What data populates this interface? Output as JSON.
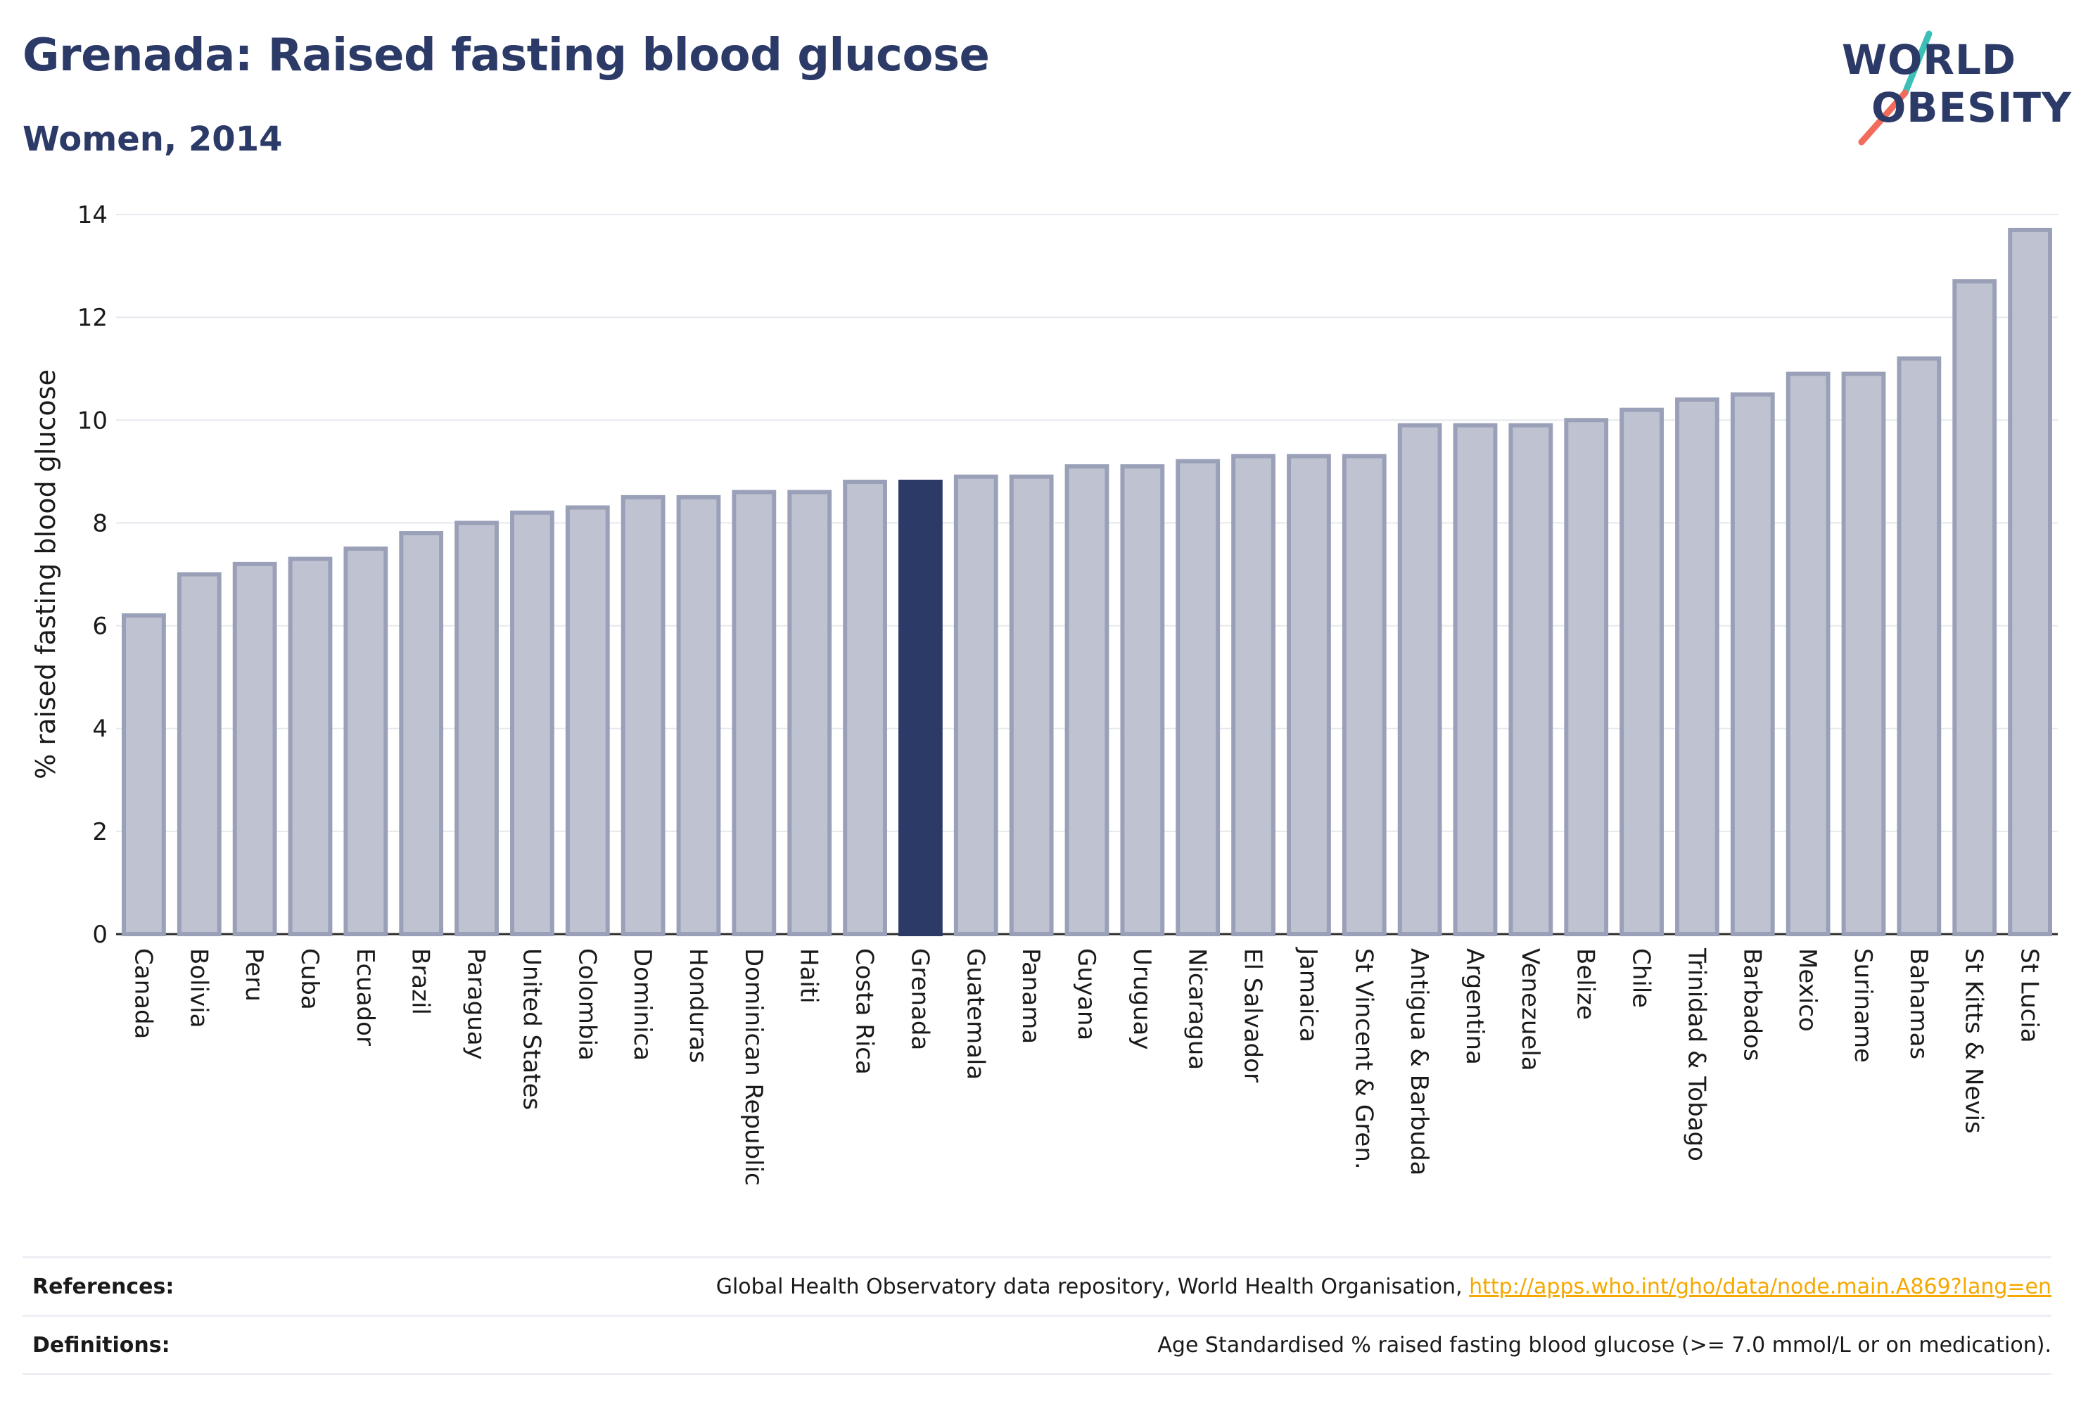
{
  "header": {
    "title": "Grenada: Raised fasting blood glucose",
    "subtitle": "Women, 2014"
  },
  "logo": {
    "line1": "WORLD",
    "line2": "OBESITY",
    "colors": {
      "text": "#2b3a67",
      "slash_top": "#3bbfb6",
      "slash_bottom": "#f26b5b"
    }
  },
  "chart_data": {
    "type": "bar",
    "title": "Grenada: Raised fasting blood glucose",
    "subtitle": "Women, 2014",
    "xlabel": "",
    "ylabel": "% raised fasting blood glucose",
    "ylim": [
      0,
      14
    ],
    "yticks": [
      0,
      2,
      4,
      6,
      8,
      10,
      12,
      14
    ],
    "grid": true,
    "highlight": "Grenada",
    "colors": {
      "bar": "#bfc3d1",
      "bar_border": "#9aa0b8",
      "highlight": "#2b3a67"
    },
    "categories": [
      "Canada",
      "Bolivia",
      "Peru",
      "Cuba",
      "Ecuador",
      "Brazil",
      "Paraguay",
      "United States",
      "Colombia",
      "Dominica",
      "Honduras",
      "Dominican Republic",
      "Haiti",
      "Costa Rica",
      "Grenada",
      "Guatemala",
      "Panama",
      "Guyana",
      "Uruguay",
      "Nicaragua",
      "El Salvador",
      "Jamaica",
      "St Vincent & Gren.",
      "Antigua & Barbuda",
      "Argentina",
      "Venezuela",
      "Belize",
      "Chile",
      "Trinidad & Tobago",
      "Barbados",
      "Mexico",
      "Suriname",
      "Bahamas",
      "St Kitts & Nevis",
      "St Lucia"
    ],
    "values": [
      6.2,
      7.0,
      7.2,
      7.3,
      7.5,
      7.8,
      8.0,
      8.2,
      8.3,
      8.5,
      8.5,
      8.6,
      8.6,
      8.8,
      8.8,
      8.9,
      8.9,
      9.1,
      9.1,
      9.2,
      9.3,
      9.3,
      9.3,
      9.9,
      9.9,
      9.9,
      10.0,
      10.2,
      10.4,
      10.5,
      10.9,
      10.9,
      11.2,
      12.7,
      13.7
    ]
  },
  "footer": {
    "references_label": "References:",
    "references_text": "Global Health Observatory data repository, World Health Organisation, ",
    "references_link": "http://apps.who.int/gho/data/node.main.A869?lang=en",
    "definitions_label": "Definitions:",
    "definitions_text": "Age Standardised % raised fasting blood glucose (>= 7.0 mmol/L or on medication)."
  }
}
